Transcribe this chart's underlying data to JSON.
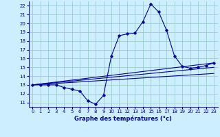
{
  "title": "Graphe des températures (°c)",
  "background_color": "#cceeff",
  "grid_color": "#99cccc",
  "line_color": "#000099",
  "xlim": [
    -0.5,
    23.5
  ],
  "ylim": [
    10.5,
    22.5
  ],
  "yticks": [
    11,
    12,
    13,
    14,
    15,
    16,
    17,
    18,
    19,
    20,
    21,
    22
  ],
  "xticks": [
    0,
    1,
    2,
    3,
    4,
    5,
    6,
    7,
    8,
    9,
    10,
    11,
    12,
    13,
    14,
    15,
    16,
    17,
    18,
    19,
    20,
    21,
    22,
    23
  ],
  "series_main": {
    "x": [
      0,
      1,
      2,
      3,
      4,
      5,
      6,
      7,
      8,
      9,
      10,
      11,
      12,
      13,
      14,
      15,
      16,
      17,
      18,
      19,
      20,
      21,
      22,
      23
    ],
    "y": [
      13,
      13,
      13,
      13,
      12.7,
      12.5,
      12.3,
      11.2,
      10.8,
      11.8,
      16.3,
      18.6,
      18.8,
      18.9,
      20.2,
      22.2,
      21.3,
      19.2,
      16.3,
      15.1,
      14.9,
      15.0,
      15.2,
      15.5
    ]
  },
  "series_line1": {
    "x": [
      0,
      23
    ],
    "y": [
      13.0,
      15.5
    ]
  },
  "series_line2": {
    "x": [
      0,
      23
    ],
    "y": [
      13.0,
      15.0
    ]
  },
  "series_line3": {
    "x": [
      0,
      23
    ],
    "y": [
      13.0,
      14.3
    ]
  }
}
